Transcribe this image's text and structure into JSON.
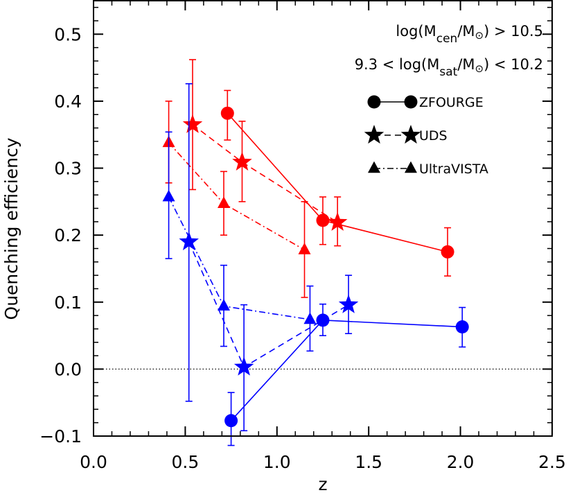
{
  "chart_data": {
    "type": "scatter",
    "xlabel": "z",
    "ylabel": "Quenching efficiency",
    "xlim": [
      0.0,
      2.5
    ],
    "ylim": [
      -0.1,
      0.55
    ],
    "x_ticks": [
      "0.0",
      "0.5",
      "1.0",
      "1.5",
      "2.0",
      "2.5"
    ],
    "y_ticks": [
      "−0.1",
      "0.0",
      "0.1",
      "0.2",
      "0.3",
      "0.4",
      "0.5"
    ],
    "reference_line": {
      "y": 0.0,
      "style": "dotted"
    },
    "annotations": {
      "line1": {
        "pre": "log(M",
        "sub": "cen",
        "post": "/M",
        "sun": "⊙",
        "rel": ") > 10.5"
      },
      "line2": {
        "pre": "9.3 < log(M",
        "sub": "sat",
        "post": "/M",
        "sun": "⊙",
        "rel": ") < 10.2"
      }
    },
    "series": [
      {
        "name": "ZFOURGE",
        "group": "central-red",
        "color": "#ff0000",
        "marker": "circle",
        "line": "solid",
        "points": [
          {
            "x": 0.73,
            "y": 0.382,
            "lo": 0.342,
            "hi": 0.416
          },
          {
            "x": 1.25,
            "y": 0.222,
            "lo": 0.186,
            "hi": 0.257
          },
          {
            "x": 1.93,
            "y": 0.175,
            "lo": 0.139,
            "hi": 0.211
          }
        ]
      },
      {
        "name": "UDS",
        "group": "central-red",
        "color": "#ff0000",
        "marker": "star",
        "line": "dashed",
        "points": [
          {
            "x": 0.54,
            "y": 0.365,
            "lo": 0.268,
            "hi": 0.462
          },
          {
            "x": 0.81,
            "y": 0.309,
            "lo": 0.25,
            "hi": 0.37
          },
          {
            "x": 1.33,
            "y": 0.219,
            "lo": 0.184,
            "hi": 0.257
          }
        ]
      },
      {
        "name": "UltraVISTA",
        "group": "central-red",
        "color": "#ff0000",
        "marker": "triangle",
        "line": "dashdot",
        "points": [
          {
            "x": 0.41,
            "y": 0.338,
            "lo": 0.278,
            "hi": 0.4
          },
          {
            "x": 0.71,
            "y": 0.247,
            "lo": 0.2,
            "hi": 0.295
          },
          {
            "x": 1.15,
            "y": 0.178,
            "lo": 0.107,
            "hi": 0.25
          }
        ]
      },
      {
        "name": "ZFOURGE",
        "group": "satellite-blue",
        "color": "#0000ff",
        "marker": "circle",
        "line": "solid",
        "points": [
          {
            "x": 0.75,
            "y": -0.077,
            "lo": -0.114,
            "hi": -0.035
          },
          {
            "x": 1.25,
            "y": 0.073,
            "lo": 0.05,
            "hi": 0.097
          },
          {
            "x": 2.01,
            "y": 0.063,
            "lo": 0.033,
            "hi": 0.092
          }
        ]
      },
      {
        "name": "UDS",
        "group": "satellite-blue",
        "color": "#0000ff",
        "marker": "star",
        "line": "dashed",
        "points": [
          {
            "x": 0.52,
            "y": 0.19,
            "lo": -0.048,
            "hi": 0.426
          },
          {
            "x": 0.82,
            "y": 0.003,
            "lo": -0.092,
            "hi": 0.096
          },
          {
            "x": 1.39,
            "y": 0.096,
            "lo": 0.053,
            "hi": 0.14
          }
        ]
      },
      {
        "name": "UltraVISTA",
        "group": "satellite-blue",
        "color": "#0000ff",
        "marker": "triangle",
        "line": "dashdot",
        "points": [
          {
            "x": 0.41,
            "y": 0.257,
            "lo": 0.165,
            "hi": 0.354
          },
          {
            "x": 0.71,
            "y": 0.094,
            "lo": 0.034,
            "hi": 0.155
          },
          {
            "x": 1.18,
            "y": 0.074,
            "lo": 0.027,
            "hi": 0.124
          }
        ]
      }
    ],
    "legend": [
      {
        "label": "ZFOURGE",
        "marker": "circle",
        "line": "solid"
      },
      {
        "label": "UDS",
        "marker": "star",
        "line": "dashed"
      },
      {
        "label": "UltraVISTA",
        "marker": "triangle",
        "line": "dashdot"
      }
    ]
  }
}
